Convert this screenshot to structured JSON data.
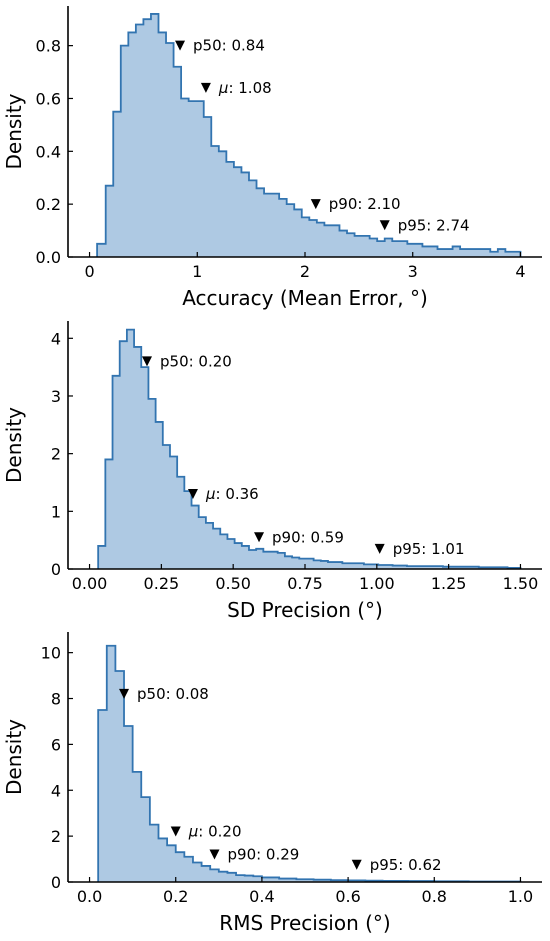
{
  "chart_data": [
    {
      "type": "area",
      "xlabel": "Accuracy (Mean Error, °)",
      "ylabel": "Density",
      "xlim": [
        -0.2,
        4.2
      ],
      "ylim": [
        0,
        0.95
      ],
      "xticks": [
        0,
        1,
        2,
        3,
        4
      ],
      "xtick_labels": [
        "0",
        "1",
        "2",
        "3",
        "4"
      ],
      "yticks": [
        0,
        0.2,
        0.4,
        0.6,
        0.8
      ],
      "ytick_labels": [
        "0.0",
        "0.2",
        "0.4",
        "0.6",
        "0.8"
      ],
      "fill_color": "#aec9e3",
      "line_color": "#3274b0",
      "histogram": {
        "edges": [
          0.07,
          0.15,
          0.22,
          0.29,
          0.36,
          0.43,
          0.5,
          0.57,
          0.64,
          0.71,
          0.78,
          0.85,
          0.92,
          0.99,
          1.06,
          1.13,
          1.2,
          1.27,
          1.34,
          1.41,
          1.48,
          1.55,
          1.62,
          1.69,
          1.76,
          1.83,
          1.9,
          1.97,
          2.04,
          2.11,
          2.18,
          2.25,
          2.32,
          2.39,
          2.46,
          2.53,
          2.6,
          2.67,
          2.74,
          2.81,
          2.88,
          2.95,
          3.02,
          3.09,
          3.16,
          3.23,
          3.3,
          3.37,
          3.44,
          3.51,
          3.58,
          3.65,
          3.72,
          3.79,
          3.86,
          3.93,
          4.0
        ],
        "density": [
          0.05,
          0.27,
          0.55,
          0.8,
          0.85,
          0.88,
          0.9,
          0.92,
          0.85,
          0.81,
          0.72,
          0.6,
          0.59,
          0.59,
          0.53,
          0.42,
          0.4,
          0.36,
          0.34,
          0.32,
          0.29,
          0.26,
          0.24,
          0.24,
          0.22,
          0.2,
          0.18,
          0.15,
          0.14,
          0.13,
          0.12,
          0.12,
          0.1,
          0.09,
          0.08,
          0.08,
          0.07,
          0.06,
          0.07,
          0.06,
          0.06,
          0.05,
          0.05,
          0.04,
          0.04,
          0.03,
          0.03,
          0.04,
          0.03,
          0.03,
          0.03,
          0.03,
          0.02,
          0.03,
          0.02,
          0.02
        ]
      },
      "annotations": [
        {
          "x": 0.84,
          "y": 0.8,
          "label": "p50: 0.84",
          "prefix": "",
          "text": "p50: 0.84"
        },
        {
          "x": 1.08,
          "y": 0.64,
          "label": "μ: 1.08",
          "prefix": "μ",
          "text": ": 1.08"
        },
        {
          "x": 2.1,
          "y": 0.2,
          "label": "p90: 2.10",
          "prefix": "",
          "text": "p90: 2.10"
        },
        {
          "x": 2.74,
          "y": 0.12,
          "label": "p95: 2.74",
          "prefix": "",
          "text": "p95: 2.74"
        }
      ]
    },
    {
      "type": "area",
      "xlabel": "SD Precision (°)",
      "ylabel": "Density",
      "xlim": [
        -0.075,
        1.575
      ],
      "ylim": [
        0,
        4.3
      ],
      "xticks": [
        0,
        0.25,
        0.5,
        0.75,
        1.0,
        1.25,
        1.5
      ],
      "xtick_labels": [
        "0.00",
        "0.25",
        "0.50",
        "0.75",
        "1.00",
        "1.25",
        "1.50"
      ],
      "yticks": [
        0,
        1,
        2,
        3,
        4
      ],
      "ytick_labels": [
        "0",
        "1",
        "2",
        "3",
        "4"
      ],
      "fill_color": "#aec9e3",
      "line_color": "#3274b0",
      "histogram": {
        "edges": [
          0.03,
          0.055,
          0.08,
          0.105,
          0.13,
          0.155,
          0.18,
          0.205,
          0.23,
          0.255,
          0.28,
          0.305,
          0.33,
          0.355,
          0.38,
          0.405,
          0.43,
          0.455,
          0.48,
          0.505,
          0.53,
          0.555,
          0.58,
          0.605,
          0.63,
          0.655,
          0.68,
          0.705,
          0.73,
          0.755,
          0.78,
          0.805,
          0.83,
          0.855,
          0.88,
          0.905,
          0.93,
          0.955,
          0.98,
          1.005,
          1.03,
          1.055,
          1.08,
          1.105,
          1.13,
          1.155,
          1.18,
          1.205,
          1.23,
          1.255,
          1.28,
          1.305,
          1.33,
          1.355,
          1.38,
          1.405,
          1.43,
          1.455,
          1.48,
          1.5
        ],
        "density": [
          0.4,
          1.9,
          3.35,
          3.95,
          4.15,
          3.85,
          3.5,
          2.95,
          2.55,
          2.15,
          1.95,
          1.6,
          1.35,
          1.1,
          0.9,
          0.8,
          0.7,
          0.6,
          0.52,
          0.45,
          0.4,
          0.33,
          0.35,
          0.3,
          0.3,
          0.28,
          0.22,
          0.2,
          0.18,
          0.18,
          0.15,
          0.14,
          0.12,
          0.12,
          0.1,
          0.1,
          0.1,
          0.08,
          0.08,
          0.07,
          0.07,
          0.06,
          0.06,
          0.05,
          0.05,
          0.05,
          0.05,
          0.05,
          0.04,
          0.04,
          0.04,
          0.04,
          0.04,
          0.03,
          0.03,
          0.03,
          0.03,
          0.02,
          0.02
        ]
      },
      "annotations": [
        {
          "x": 0.2,
          "y": 3.6,
          "label": "p50: 0.20",
          "prefix": "",
          "text": "p50: 0.20"
        },
        {
          "x": 0.36,
          "y": 1.3,
          "label": "μ: 0.36",
          "prefix": "μ",
          "text": ": 0.36"
        },
        {
          "x": 0.59,
          "y": 0.55,
          "label": "p90: 0.59",
          "prefix": "",
          "text": "p90: 0.59"
        },
        {
          "x": 1.01,
          "y": 0.35,
          "label": "p95: 1.01",
          "prefix": "",
          "text": "p95: 1.01"
        }
      ]
    },
    {
      "type": "area",
      "xlabel": "RMS Precision (°)",
      "ylabel": "Density",
      "xlim": [
        -0.05,
        1.05
      ],
      "ylim": [
        0,
        10.9
      ],
      "xticks": [
        0,
        0.2,
        0.4,
        0.6,
        0.8,
        1.0
      ],
      "xtick_labels": [
        "0.0",
        "0.2",
        "0.4",
        "0.6",
        "0.8",
        "1.0"
      ],
      "yticks": [
        0,
        2,
        4,
        6,
        8,
        10
      ],
      "ytick_labels": [
        "0",
        "2",
        "4",
        "6",
        "8",
        "10"
      ],
      "fill_color": "#aec9e3",
      "line_color": "#3274b0",
      "histogram": {
        "edges": [
          0.02,
          0.04,
          0.06,
          0.08,
          0.1,
          0.12,
          0.14,
          0.16,
          0.18,
          0.2,
          0.22,
          0.24,
          0.26,
          0.28,
          0.3,
          0.32,
          0.34,
          0.36,
          0.38,
          0.4,
          0.42,
          0.44,
          0.46,
          0.48,
          0.5,
          0.52,
          0.54,
          0.56,
          0.58,
          0.6,
          0.62,
          0.64,
          0.66,
          0.68,
          0.7,
          0.72,
          0.74,
          0.76,
          0.78,
          0.8,
          0.82,
          0.84,
          0.86,
          0.88,
          0.9,
          0.92,
          0.94,
          0.96,
          0.98,
          1.0
        ],
        "density": [
          7.5,
          10.3,
          9.2,
          6.8,
          4.8,
          3.7,
          2.5,
          1.9,
          1.6,
          1.3,
          1.1,
          0.85,
          0.7,
          0.55,
          0.45,
          0.4,
          0.3,
          0.28,
          0.25,
          0.2,
          0.2,
          0.15,
          0.15,
          0.12,
          0.12,
          0.1,
          0.1,
          0.08,
          0.08,
          0.07,
          0.07,
          0.06,
          0.06,
          0.05,
          0.05,
          0.05,
          0.04,
          0.04,
          0.04,
          0.03,
          0.03,
          0.03,
          0.03,
          0.02,
          0.02,
          0.02,
          0.02,
          0.02,
          0.02
        ]
      },
      "annotations": [
        {
          "x": 0.08,
          "y": 8.2,
          "label": "p50: 0.08",
          "prefix": "",
          "text": "p50: 0.08"
        },
        {
          "x": 0.2,
          "y": 2.2,
          "label": "μ: 0.20",
          "prefix": "μ",
          "text": ": 0.20"
        },
        {
          "x": 0.29,
          "y": 1.2,
          "label": "p90: 0.29",
          "prefix": "",
          "text": "p90: 0.29"
        },
        {
          "x": 0.62,
          "y": 0.75,
          "label": "p95: 0.62",
          "prefix": "",
          "text": "p95: 0.62"
        }
      ]
    }
  ]
}
